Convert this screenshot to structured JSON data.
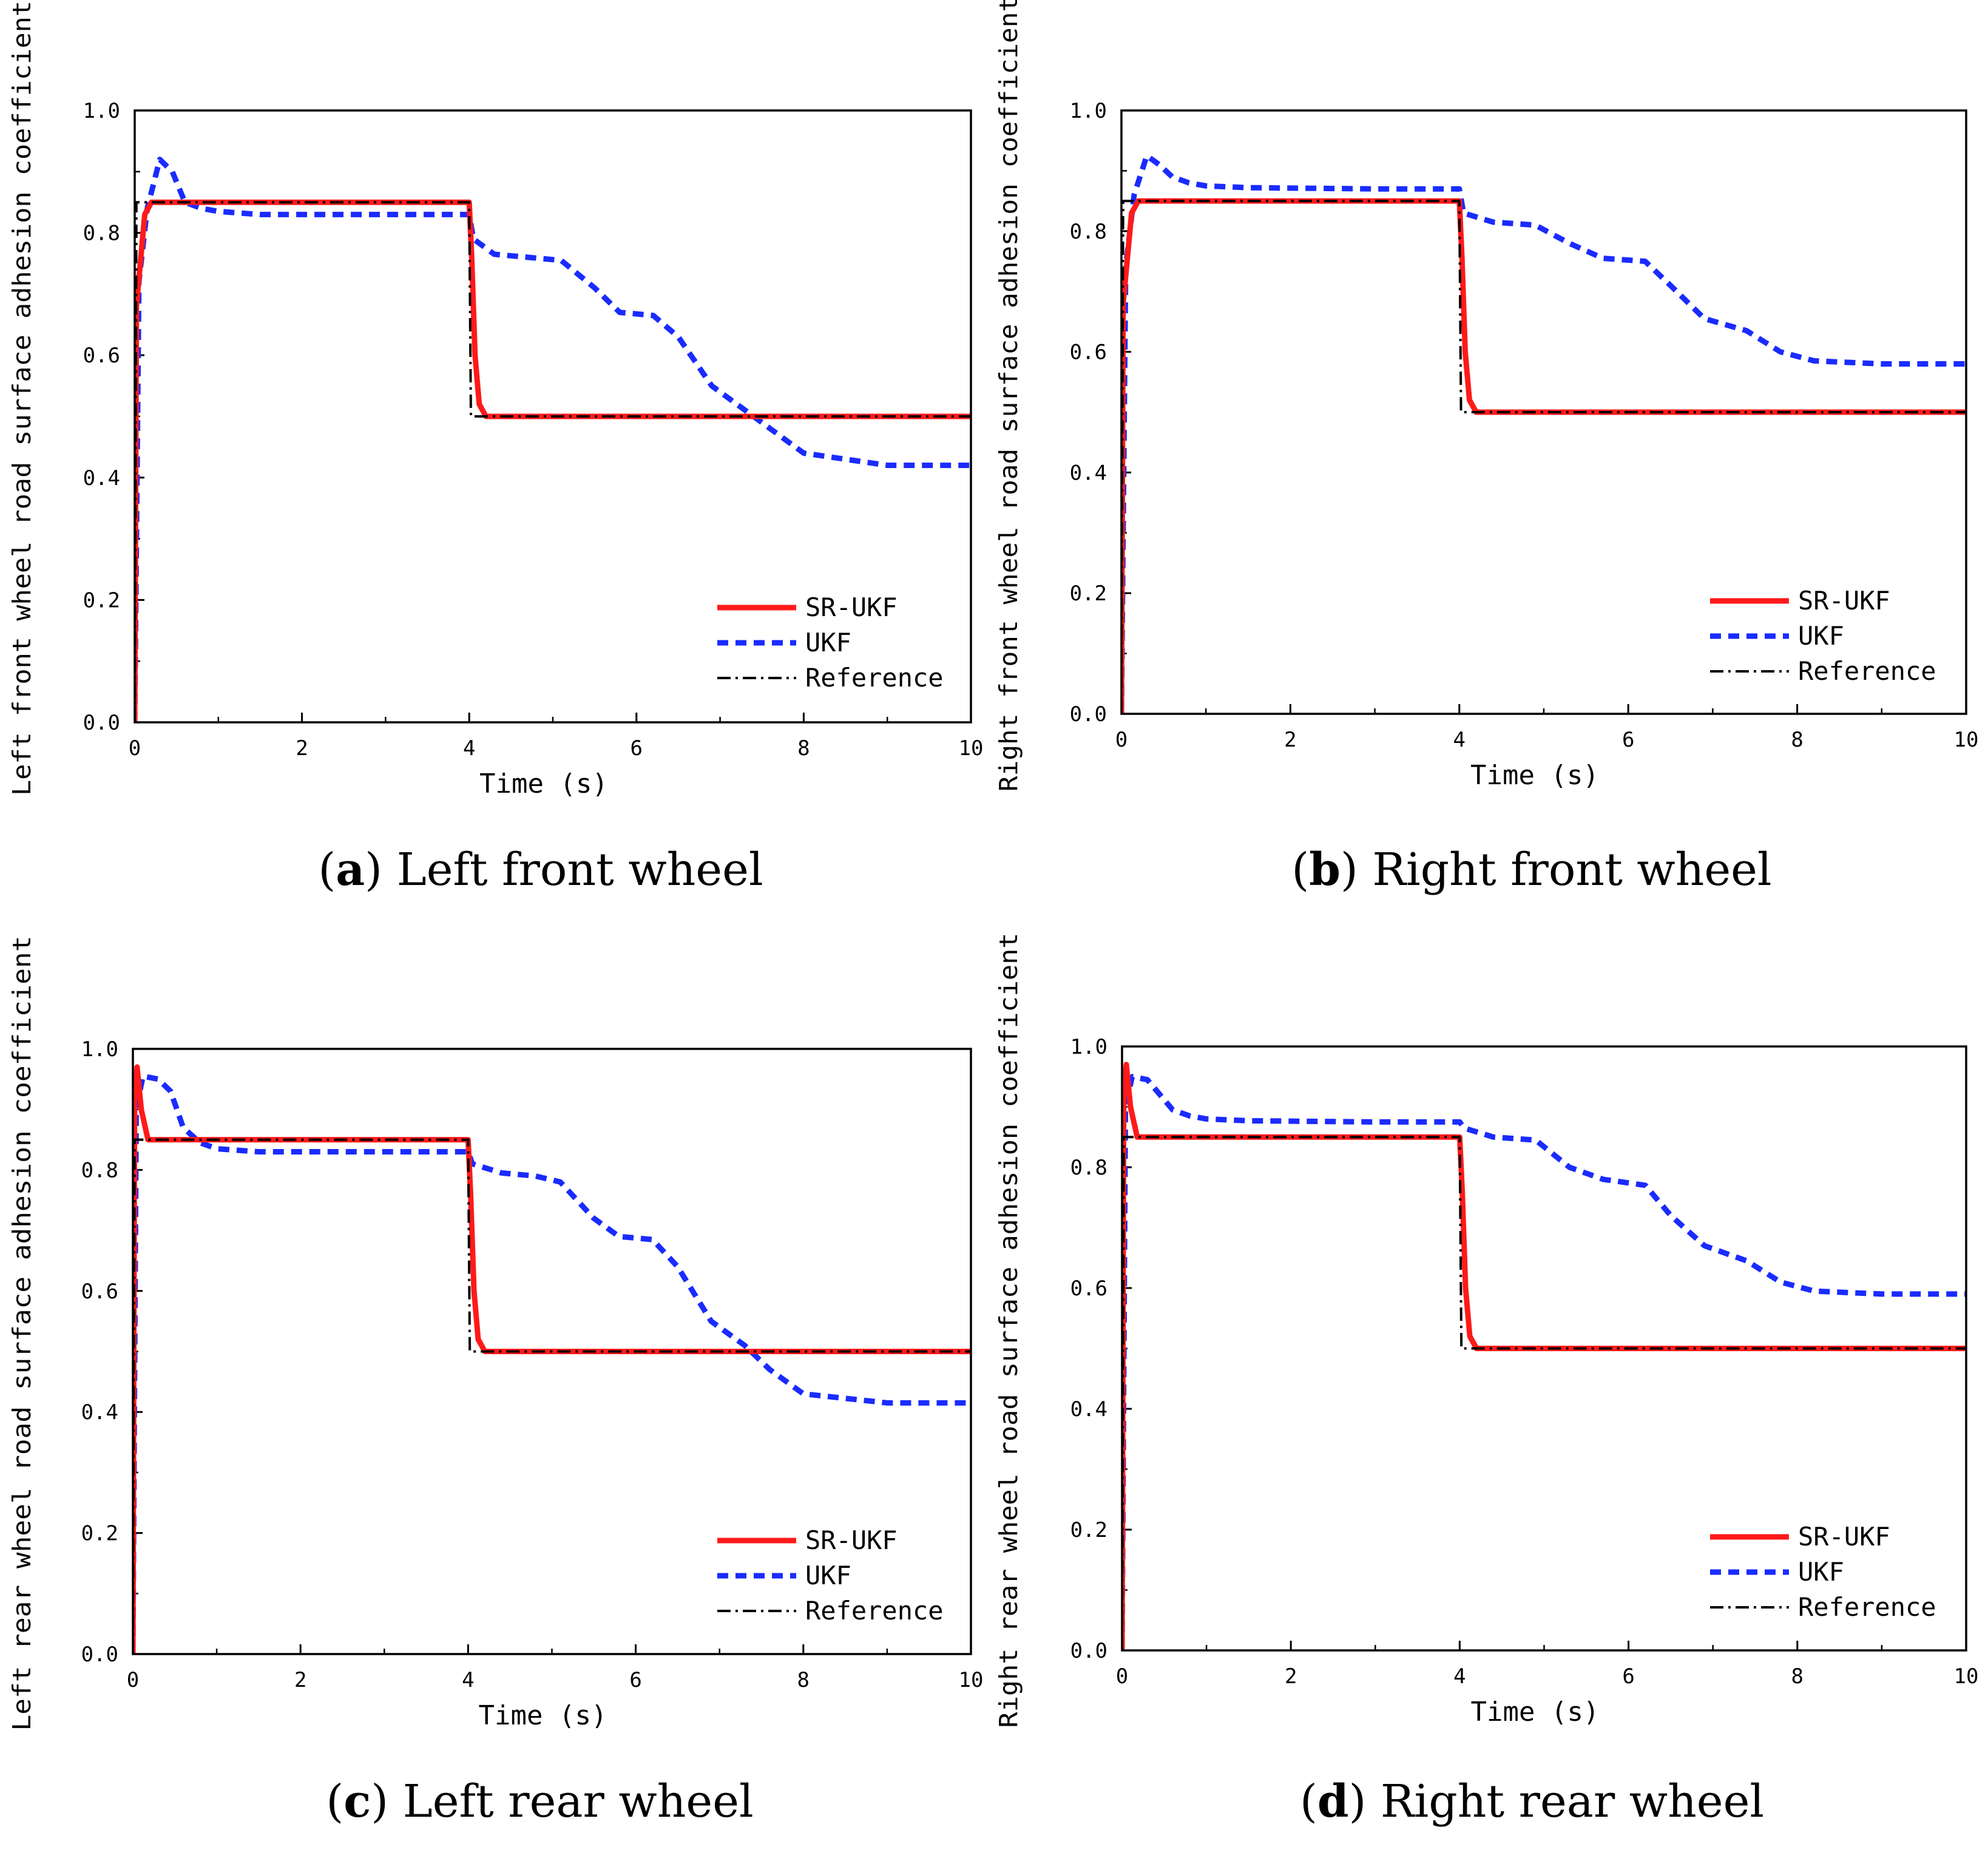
{
  "colors": {
    "sr_ukf": "#ff1a1a",
    "ukf": "#1a2bff",
    "reference": "#000000"
  },
  "legend_labels": [
    "SR-UKF",
    "UKF",
    "Reference"
  ],
  "chart_data": [
    {
      "type": "line",
      "panel_letter": "a",
      "caption": "Left front wheel",
      "caption_full": "(a) Left front wheel",
      "xlabel": "Time (s)",
      "ylabel": "Left front wheel road surface adhesion coefficient",
      "xlim": [
        0,
        10
      ],
      "ylim": [
        0,
        1.0
      ],
      "xticks": [
        0,
        2,
        4,
        6,
        8,
        10
      ],
      "xtick_labels": [
        "0",
        "2",
        "4",
        "6",
        "8",
        "10"
      ],
      "yticks": [
        0,
        0.2,
        0.4,
        0.6,
        0.8,
        1.0
      ],
      "ytick_labels": [
        "0.0",
        "0.2",
        "0.4",
        "0.6",
        "0.8",
        "1.0"
      ],
      "legend_position": "bottom-right",
      "series": [
        {
          "name": "Reference",
          "x": [
            0,
            0.02,
            4.0,
            4.02,
            10
          ],
          "y": [
            0,
            0.85,
            0.85,
            0.5,
            0.5
          ]
        },
        {
          "name": "SR-UKF",
          "x": [
            0,
            0.02,
            0.06,
            0.12,
            0.2,
            4.0,
            4.03,
            4.07,
            4.12,
            4.2,
            10
          ],
          "y": [
            0,
            0.68,
            0.74,
            0.83,
            0.85,
            0.85,
            0.76,
            0.6,
            0.52,
            0.5,
            0.5
          ]
        },
        {
          "name": "UKF",
          "x": [
            0,
            0.05,
            0.15,
            0.3,
            0.45,
            0.6,
            0.8,
            1.0,
            1.5,
            3.0,
            4.0,
            4.05,
            4.3,
            4.7,
            5.1,
            5.5,
            5.8,
            6.2,
            6.5,
            6.9,
            7.3,
            7.6,
            8.0,
            9.0,
            10.0
          ],
          "y": [
            0,
            0.72,
            0.84,
            0.92,
            0.9,
            0.85,
            0.84,
            0.835,
            0.83,
            0.83,
            0.83,
            0.79,
            0.765,
            0.76,
            0.755,
            0.71,
            0.67,
            0.665,
            0.63,
            0.55,
            0.51,
            0.48,
            0.44,
            0.42,
            0.42
          ]
        }
      ]
    },
    {
      "type": "line",
      "panel_letter": "b",
      "caption": "Right front wheel",
      "caption_full": "(b) Right front wheel",
      "xlabel": "Time (s)",
      "ylabel": "Right front wheel road surface adhesion coefficient",
      "xlim": [
        0,
        10
      ],
      "ylim": [
        0,
        1.0
      ],
      "xticks": [
        0,
        2,
        4,
        6,
        8,
        10
      ],
      "xtick_labels": [
        "0",
        "2",
        "4",
        "6",
        "8",
        "10"
      ],
      "yticks": [
        0,
        0.2,
        0.4,
        0.6,
        0.8,
        1.0
      ],
      "ytick_labels": [
        "0.0",
        "0.2",
        "0.4",
        "0.6",
        "0.8",
        "1.0"
      ],
      "legend_position": "bottom-right",
      "series": [
        {
          "name": "Reference",
          "x": [
            0,
            0.02,
            4.0,
            4.02,
            10
          ],
          "y": [
            0,
            0.85,
            0.85,
            0.5,
            0.5
          ]
        },
        {
          "name": "SR-UKF",
          "x": [
            0,
            0.02,
            0.06,
            0.12,
            0.2,
            4.0,
            4.03,
            4.07,
            4.12,
            4.2,
            10
          ],
          "y": [
            0,
            0.68,
            0.74,
            0.83,
            0.85,
            0.85,
            0.76,
            0.6,
            0.52,
            0.5,
            0.5
          ]
        },
        {
          "name": "UKF",
          "x": [
            0,
            0.05,
            0.15,
            0.3,
            0.45,
            0.6,
            0.8,
            1.0,
            1.5,
            3.0,
            4.0,
            4.05,
            4.4,
            4.9,
            5.3,
            5.7,
            6.2,
            6.5,
            6.9,
            7.4,
            7.8,
            8.2,
            9.0,
            10.0
          ],
          "y": [
            0,
            0.74,
            0.86,
            0.925,
            0.91,
            0.89,
            0.88,
            0.875,
            0.872,
            0.87,
            0.87,
            0.83,
            0.815,
            0.81,
            0.78,
            0.755,
            0.75,
            0.71,
            0.655,
            0.635,
            0.6,
            0.585,
            0.58,
            0.58
          ]
        }
      ]
    },
    {
      "type": "line",
      "panel_letter": "c",
      "caption": "Left rear wheel",
      "caption_full": "(c) Left rear wheel",
      "xlabel": "Time (s)",
      "ylabel": "Left rear wheel road surface adhesion coefficient",
      "xlim": [
        0,
        10
      ],
      "ylim": [
        0,
        1.0
      ],
      "xticks": [
        0,
        2,
        4,
        6,
        8,
        10
      ],
      "xtick_labels": [
        "0",
        "2",
        "4",
        "6",
        "8",
        "10"
      ],
      "yticks": [
        0,
        0.2,
        0.4,
        0.6,
        0.8,
        1.0
      ],
      "ytick_labels": [
        "0.0",
        "0.2",
        "0.4",
        "0.6",
        "0.8",
        "1.0"
      ],
      "legend_position": "bottom-right",
      "series": [
        {
          "name": "Reference",
          "x": [
            0,
            0.02,
            4.0,
            4.02,
            10
          ],
          "y": [
            0,
            0.85,
            0.85,
            0.5,
            0.5
          ]
        },
        {
          "name": "SR-UKF",
          "x": [
            0,
            0.02,
            0.05,
            0.1,
            0.18,
            4.0,
            4.03,
            4.07,
            4.12,
            4.2,
            10
          ],
          "y": [
            0,
            0.93,
            0.97,
            0.9,
            0.85,
            0.85,
            0.76,
            0.6,
            0.52,
            0.5,
            0.5
          ]
        },
        {
          "name": "UKF",
          "x": [
            0,
            0.04,
            0.12,
            0.3,
            0.45,
            0.6,
            0.8,
            1.0,
            1.5,
            3.0,
            4.0,
            4.05,
            4.4,
            4.8,
            5.1,
            5.5,
            5.8,
            6.2,
            6.5,
            6.9,
            7.3,
            7.6,
            8.0,
            9.0,
            10.0
          ],
          "y": [
            0,
            0.9,
            0.955,
            0.95,
            0.93,
            0.87,
            0.845,
            0.835,
            0.83,
            0.83,
            0.83,
            0.81,
            0.795,
            0.79,
            0.78,
            0.72,
            0.69,
            0.685,
            0.64,
            0.55,
            0.51,
            0.47,
            0.43,
            0.415,
            0.415
          ]
        }
      ]
    },
    {
      "type": "line",
      "panel_letter": "d",
      "caption": "Right rear wheel",
      "caption_full": "(d) Right rear wheel",
      "xlabel": "Time (s)",
      "ylabel": "Right rear wheel road surface adhesion coefficient",
      "xlim": [
        0,
        10
      ],
      "ylim": [
        0,
        1.0
      ],
      "xticks": [
        0,
        2,
        4,
        6,
        8,
        10
      ],
      "xtick_labels": [
        "0",
        "2",
        "4",
        "6",
        "8",
        "10"
      ],
      "yticks": [
        0,
        0.2,
        0.4,
        0.6,
        0.8,
        1.0
      ],
      "ytick_labels": [
        "0.0",
        "0.2",
        "0.4",
        "0.6",
        "0.8",
        "1.0"
      ],
      "legend_position": "bottom-right",
      "series": [
        {
          "name": "Reference",
          "x": [
            0,
            0.02,
            4.0,
            4.02,
            10
          ],
          "y": [
            0,
            0.85,
            0.85,
            0.5,
            0.5
          ]
        },
        {
          "name": "SR-UKF",
          "x": [
            0,
            0.02,
            0.05,
            0.1,
            0.18,
            4.0,
            4.03,
            4.07,
            4.12,
            4.2,
            10
          ],
          "y": [
            0,
            0.93,
            0.97,
            0.9,
            0.85,
            0.85,
            0.76,
            0.6,
            0.52,
            0.5,
            0.5
          ]
        },
        {
          "name": "UKF",
          "x": [
            0,
            0.04,
            0.12,
            0.3,
            0.45,
            0.6,
            0.8,
            1.0,
            1.5,
            3.0,
            4.0,
            4.05,
            4.4,
            4.9,
            5.3,
            5.7,
            6.2,
            6.5,
            6.9,
            7.4,
            7.8,
            8.2,
            9.0,
            10.0
          ],
          "y": [
            0,
            0.9,
            0.95,
            0.945,
            0.92,
            0.895,
            0.885,
            0.88,
            0.877,
            0.875,
            0.875,
            0.865,
            0.85,
            0.845,
            0.8,
            0.78,
            0.77,
            0.72,
            0.67,
            0.645,
            0.61,
            0.595,
            0.59,
            0.59
          ]
        }
      ]
    }
  ]
}
